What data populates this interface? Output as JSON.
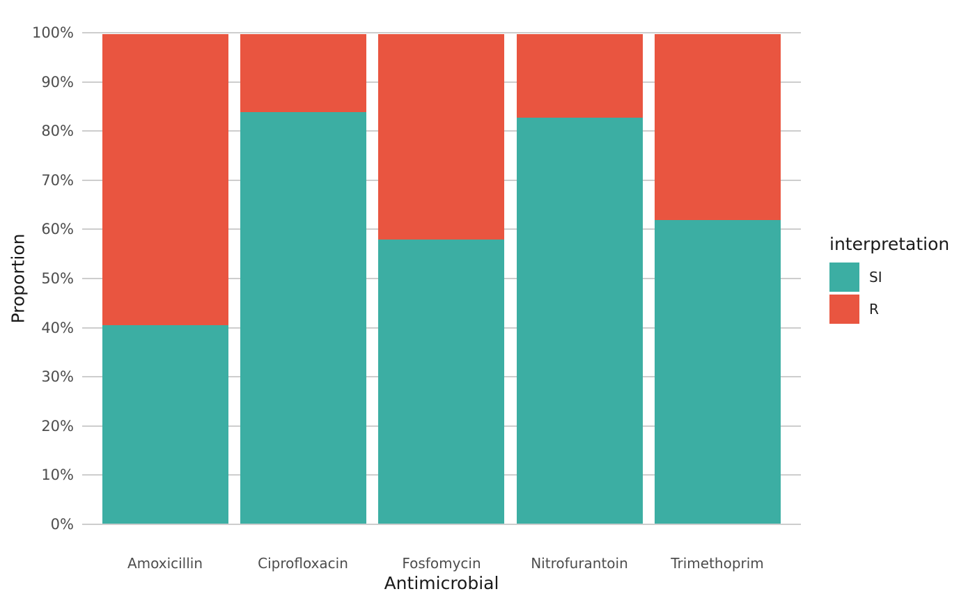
{
  "chart_data": {
    "type": "bar",
    "stacked": true,
    "percent_stacked": true,
    "xlabel": "Antimicrobial",
    "ylabel": "Proportion",
    "legend_title": "interpretation",
    "legend_position": "right",
    "grid": true,
    "categories": [
      "Amoxicillin",
      "Ciprofloxacin",
      "Fosfomycin",
      "Nitrofurantoin",
      "Trimethoprim"
    ],
    "series": [
      {
        "name": "SI",
        "color": "#3CAEA3",
        "values": [
          40.5,
          84,
          58,
          83,
          62
        ]
      },
      {
        "name": "R",
        "color": "#E95540",
        "values": [
          59.5,
          16,
          42,
          17,
          38
        ]
      }
    ],
    "y_ticks": [
      "0%",
      "10%",
      "20%",
      "30%",
      "40%",
      "50%",
      "60%",
      "70%",
      "80%",
      "90%",
      "100%"
    ],
    "ylim": [
      0,
      100
    ]
  },
  "colors": {
    "background": "#FFFFFF",
    "gridline": "#CDCDCD",
    "axis_text": "#4D4D4D",
    "title_text": "#1A1A1A"
  }
}
